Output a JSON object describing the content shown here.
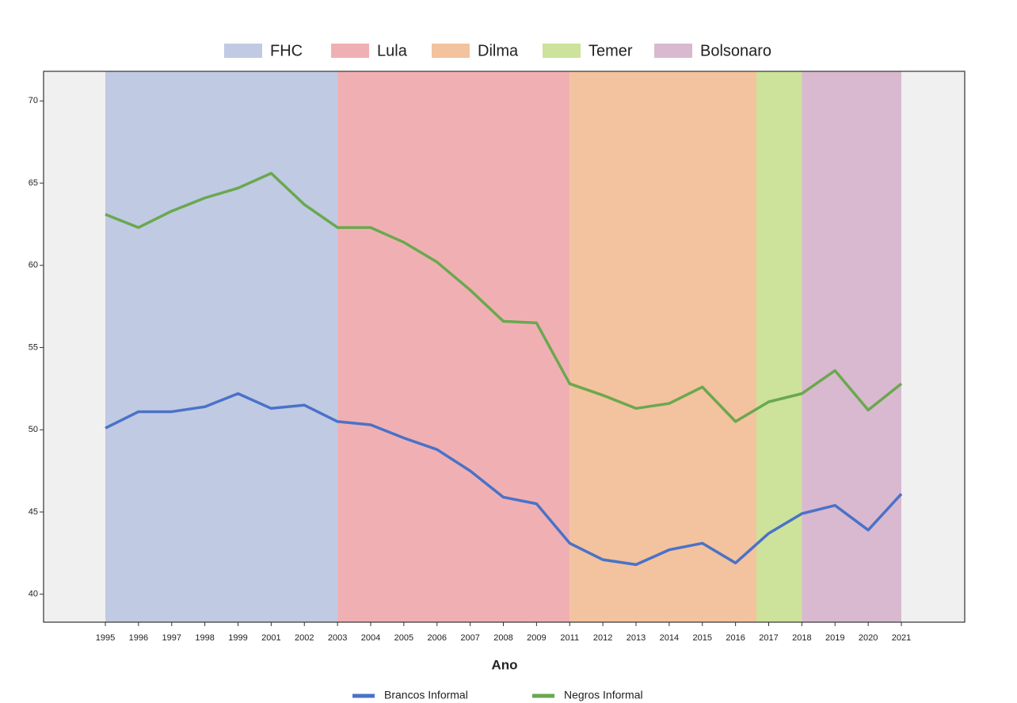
{
  "chart_data": {
    "type": "line",
    "x_label": "Ano",
    "categories": [
      "1995",
      "1996",
      "1997",
      "1998",
      "1999",
      "2001",
      "2002",
      "2003",
      "2004",
      "2005",
      "2006",
      "2007",
      "2008",
      "2009",
      "2011",
      "2012",
      "2013",
      "2014",
      "2015",
      "2016",
      "2017",
      "2018",
      "2019",
      "2020",
      "2021"
    ],
    "series": [
      {
        "name": "Brancos Informal",
        "color": "#4a72c8",
        "values": [
          50.1,
          51.1,
          51.1,
          51.4,
          52.2,
          51.3,
          51.5,
          50.5,
          50.3,
          49.5,
          48.8,
          47.5,
          45.9,
          45.5,
          43.1,
          42.1,
          41.8,
          42.7,
          43.1,
          41.9,
          43.7,
          44.9,
          45.4,
          43.9,
          46.1
        ]
      },
      {
        "name": "Negros Informal",
        "color": "#6aa84f",
        "values": [
          63.1,
          62.3,
          63.3,
          64.1,
          64.7,
          65.6,
          63.7,
          62.3,
          62.3,
          61.4,
          60.2,
          58.5,
          56.6,
          56.5,
          52.8,
          52.1,
          51.3,
          51.6,
          52.6,
          50.5,
          51.7,
          52.2,
          53.6,
          51.2,
          52.8
        ]
      }
    ],
    "periods": [
      {
        "name": "FHC",
        "color": "#c0cae3",
        "start": 0,
        "end": 7
      },
      {
        "name": "Lula",
        "color": "#f0b0b3",
        "start": 7,
        "end": 14
      },
      {
        "name": "Dilma",
        "color": "#f3c29e",
        "start": 14,
        "end": 19.63
      },
      {
        "name": "Temer",
        "color": "#cde29b",
        "start": 19.63,
        "end": 21
      },
      {
        "name": "Bolsonaro",
        "color": "#d9b9cf",
        "start": 21,
        "end": 24
      }
    ],
    "ylim": [
      38.3,
      71.8
    ],
    "yticks": [
      40,
      45,
      50,
      55,
      60,
      65,
      70
    ],
    "background": "#f0f0f0"
  }
}
